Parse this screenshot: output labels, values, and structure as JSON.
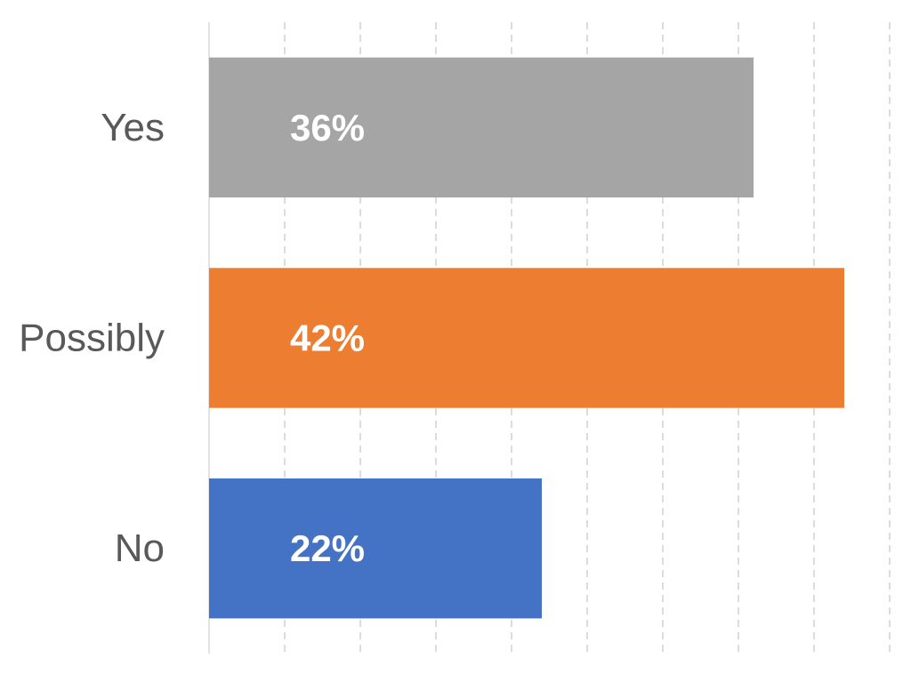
{
  "chart_data": {
    "type": "bar",
    "orientation": "horizontal",
    "categories": [
      "Yes",
      "Possibly",
      "No"
    ],
    "values": [
      36,
      42,
      22
    ],
    "value_labels": [
      "36%",
      "42%",
      "22%"
    ],
    "colors": [
      "#a5a5a5",
      "#ed7d31",
      "#4472c4"
    ],
    "xlim": [
      0,
      45
    ],
    "grid": true,
    "title": "",
    "xlabel": "",
    "ylabel": ""
  }
}
